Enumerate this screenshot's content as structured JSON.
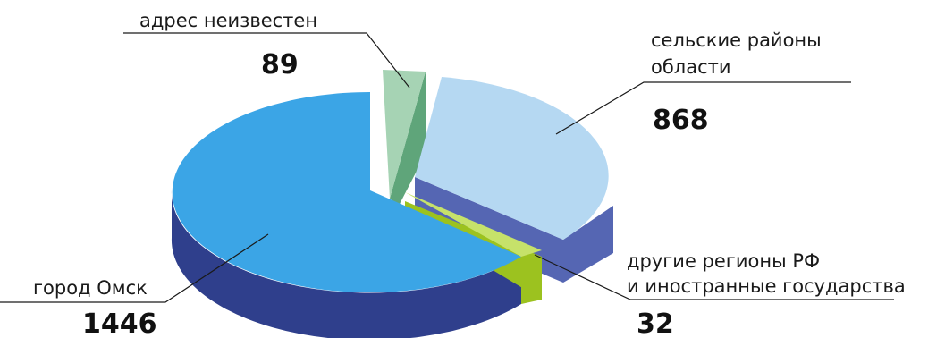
{
  "chart_data": {
    "type": "pie",
    "title": "",
    "slices": [
      {
        "label": "адрес неизвестен",
        "value": 89,
        "top_color": "#a6d3b4",
        "side_color": "#5fa57a"
      },
      {
        "label_lines": [
          "сельские районы",
          "области"
        ],
        "value": 868,
        "top_color": "#b5d8f2",
        "side_color": "#5566b3"
      },
      {
        "label_lines": [
          "другие регионы РФ",
          "и иностранные государства"
        ],
        "value": 32,
        "top_color": "#c6e26a",
        "side_color": "#9cc21f"
      },
      {
        "label": "город Омск",
        "value": 1446,
        "top_color": "#3ba5e6",
        "side_color": "#2f3f8c"
      }
    ]
  }
}
